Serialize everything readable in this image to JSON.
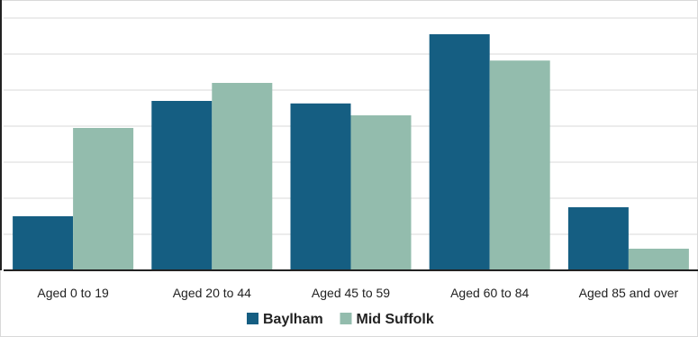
{
  "chart_data": {
    "type": "bar",
    "categories": [
      "Aged 0 to 19",
      "Aged 20 to 44",
      "Aged 45 to 59",
      "Aged 60 to 84",
      "Aged 85 and over"
    ],
    "series": [
      {
        "name": "Baylham",
        "color": "#155e82",
        "values": [
          15,
          47,
          46.3,
          65.5,
          17.5
        ]
      },
      {
        "name": "Mid Suffolk",
        "color": "#93bcad",
        "values": [
          39.5,
          52,
          43,
          58.2,
          6
        ]
      }
    ],
    "ylim": [
      0,
      75
    ],
    "grid": true,
    "legend_position": "bottom",
    "title": "",
    "xlabel": "",
    "ylabel": ""
  }
}
